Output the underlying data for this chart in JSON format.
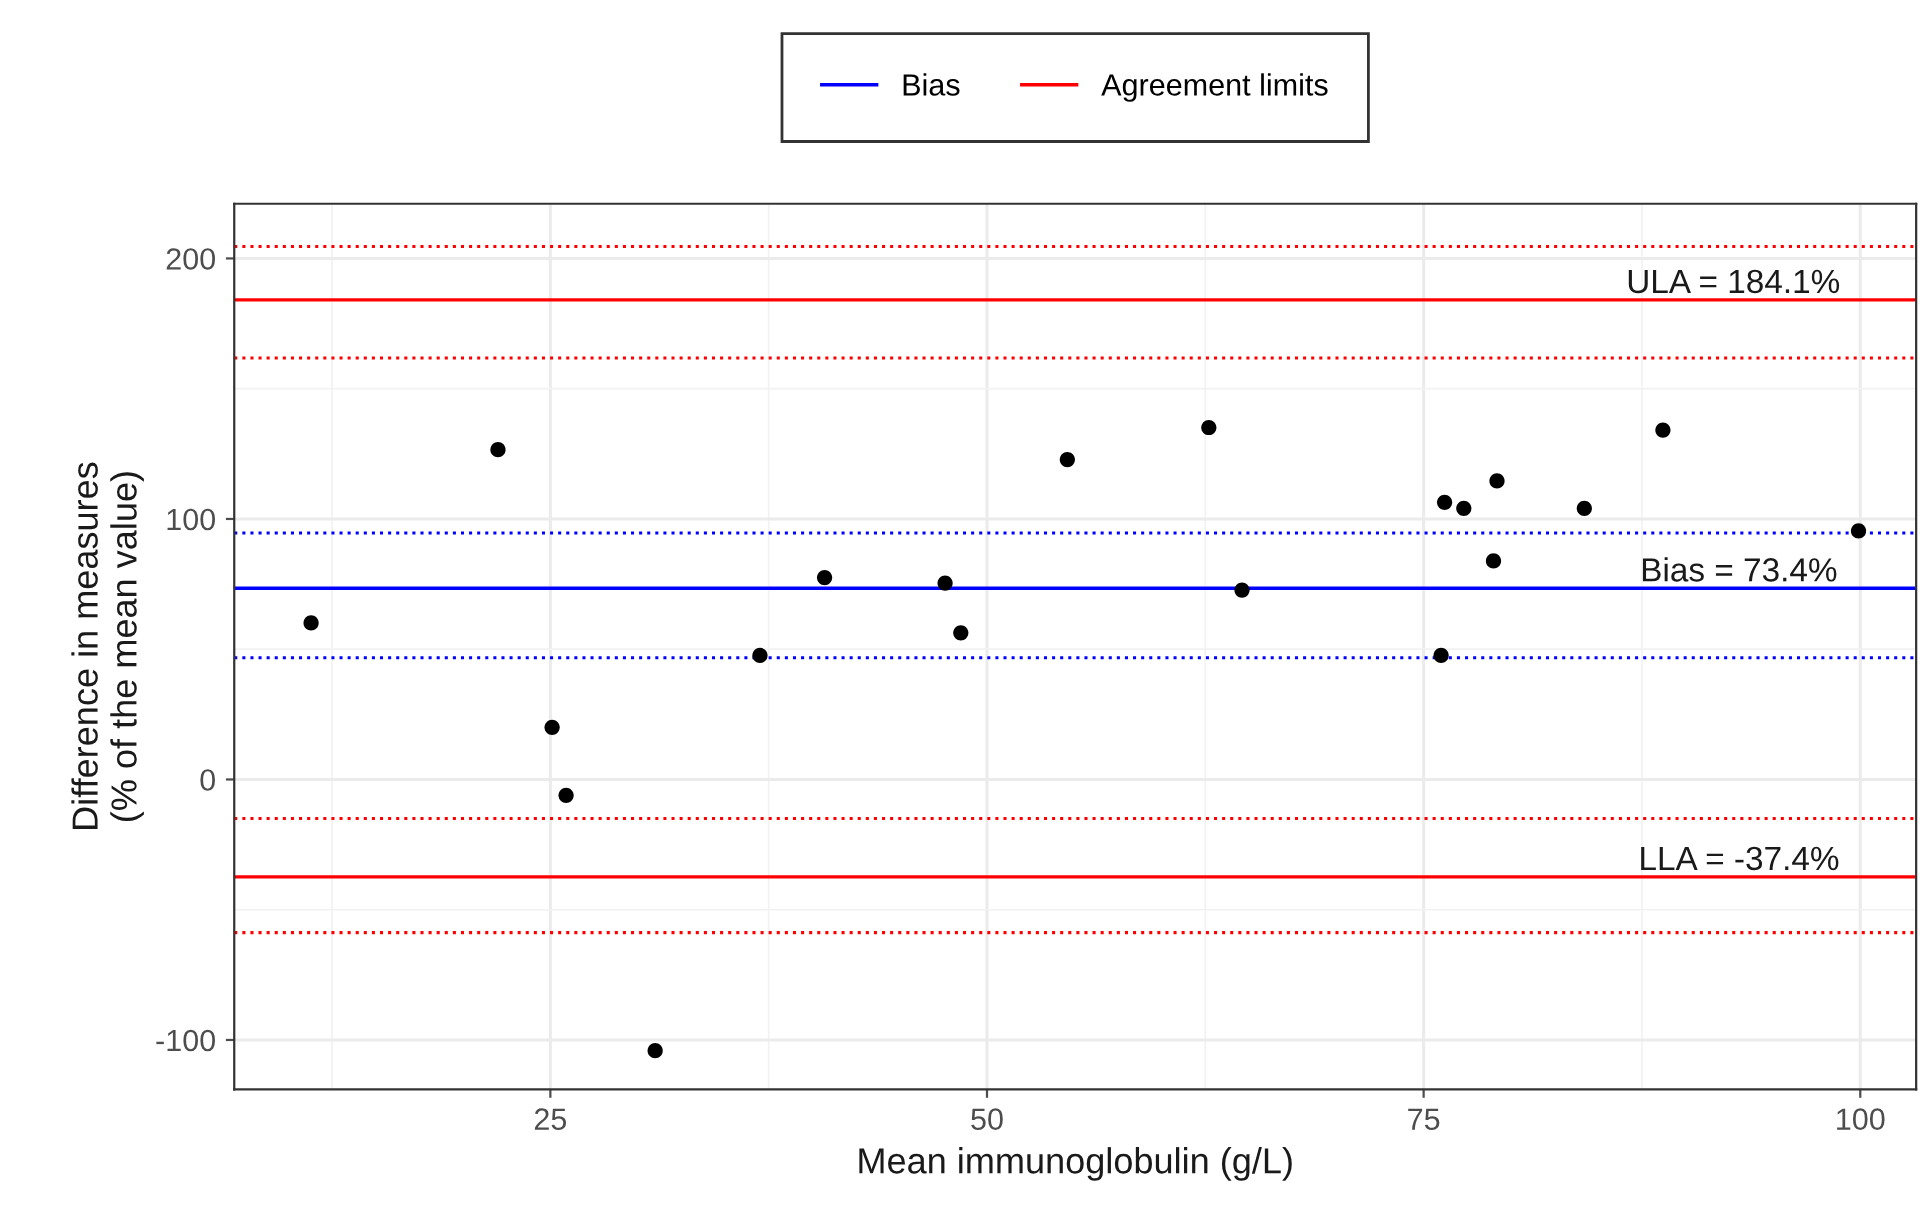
{
  "chart_data": {
    "type": "scatter",
    "xlabel": "Mean immunoglobulin (g/L)",
    "ylabel": "Difference in measures\n(% of the mean value)",
    "xlim": [
      6.9,
      103.2
    ],
    "ylim": [
      -119,
      221
    ],
    "xticks": [
      25,
      50,
      75,
      100
    ],
    "yticks": [
      -100,
      0,
      100,
      200
    ],
    "grid": true,
    "legend": "top",
    "series": [
      {
        "marker": "circle",
        "color": "#000000",
        "x": [
          11.3,
          22.0,
          25.1,
          25.9,
          31.0,
          37.0,
          40.7,
          47.6,
          48.5,
          54.6,
          62.7,
          64.6,
          76.2,
          77.3,
          76.0,
          79.0,
          79.2,
          84.2,
          88.7,
          99.9
        ],
        "values": [
          60.1,
          126.6,
          20.0,
          -6.1,
          -104.1,
          47.6,
          77.5,
          75.4,
          56.3,
          122.8,
          135.1,
          72.7,
          106.4,
          104.1,
          47.6,
          83.9,
          114.6,
          104.1,
          134.1,
          95.4
        ]
      },
      {
        "type": "line",
        "name": "Bias",
        "marker": "none",
        "color": "#0000ff",
        "line_style": "solid",
        "x": [
          6.9,
          103.2
        ],
        "values": [
          73.4,
          73.4
        ]
      },
      {
        "type": "line",
        "name": "Agreement limits",
        "marker": "none",
        "color": "#ff0000",
        "line_style": "solid",
        "x": [
          6.9,
          103.2
        ],
        "values": [
          184.1,
          184.1
        ]
      },
      {
        "type": "line",
        "marker": "none",
        "color": "#ff0000",
        "line_style": "solid",
        "x": [
          6.9,
          103.2
        ],
        "values": [
          -37.4,
          -37.4
        ]
      }
    ],
    "ref_lines": [
      {
        "axis": "y",
        "value": 204.6,
        "color": "#ff0000",
        "line_style": "dotted"
      },
      {
        "axis": "y",
        "value": 161.8,
        "color": "#ff0000",
        "line_style": "dotted"
      },
      {
        "axis": "y",
        "value": 94.6,
        "color": "#0000ff",
        "line_style": "dotted"
      },
      {
        "axis": "y",
        "value": 46.7,
        "color": "#0000ff",
        "line_style": "dotted"
      },
      {
        "axis": "y",
        "value": -15,
        "color": "#ff0000",
        "line_style": "dotted"
      },
      {
        "axis": "y",
        "value": -58.8,
        "color": "#ff0000",
        "line_style": "dotted"
      }
    ],
    "annotations": [
      {
        "text": "ULA = 184.1%",
        "x": 86.6,
        "y": 184.1
      },
      {
        "text": "Bias = 73.4%",
        "x": 87.4,
        "y": 73.4
      },
      {
        "text": "LLA = -37.4%",
        "x": 87.3,
        "y": -37.4
      }
    ]
  }
}
